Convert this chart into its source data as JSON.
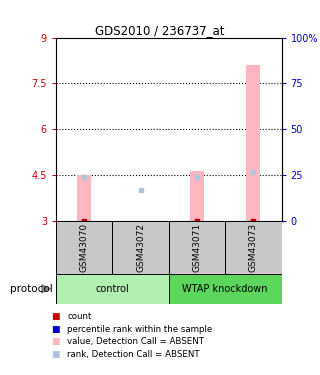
{
  "title": "GDS2010 / 236737_at",
  "samples": [
    "GSM43070",
    "GSM43072",
    "GSM43071",
    "GSM43073"
  ],
  "groups": [
    "control",
    "control",
    "WTAP knockdown",
    "WTAP knockdown"
  ],
  "group_labels": [
    "control",
    "WTAP knockdown"
  ],
  "group_colors_light": [
    "#b2f0b2",
    "#5cd65c"
  ],
  "sample_bg_color": "#C8C8C8",
  "ylim_left": [
    3,
    9
  ],
  "ylim_right": [
    0,
    100
  ],
  "yticks_left": [
    3,
    4.5,
    6,
    7.5,
    9
  ],
  "yticks_right": [
    0,
    25,
    50,
    75,
    100
  ],
  "ytick_labels_right": [
    "0",
    "25",
    "50",
    "75",
    "100%"
  ],
  "left_tick_color": "#CC0000",
  "right_tick_color": "#0000CC",
  "bar_values": [
    4.5,
    null,
    4.65,
    8.1
  ],
  "bar_base": 3,
  "bar_color_absent": "#FFB6C1",
  "rank_dot_absent": [
    24,
    17,
    24,
    27
  ],
  "rank_dot_color_absent": "#B0C4DE",
  "count_dot_color": "#CC0000",
  "count_dot_present": [],
  "dotted_lines": [
    4.5,
    6.0,
    7.5
  ],
  "protocol_label": "protocol",
  "bar_width": 0.25
}
